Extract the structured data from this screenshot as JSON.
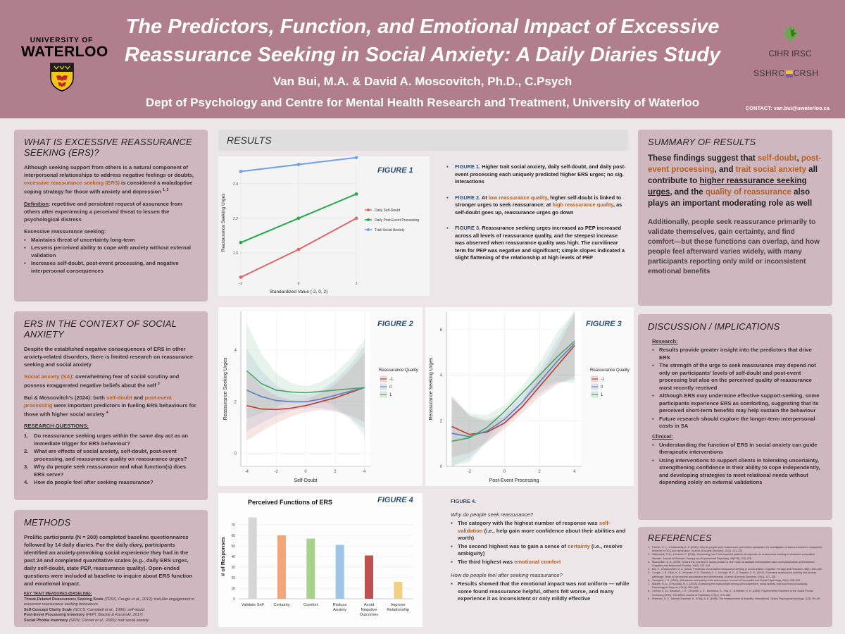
{
  "header": {
    "title_line1": "The Predictors, Function, and Emotional Impact of Excessive",
    "title_line2": "Reassurance Seeking in Social Anxiety: A Daily Diaries Study",
    "authors": "Van Bui, M.A. & David A. Moscovitch, Ph.D., C.Psych",
    "department": "Dept of Psychology and Centre for Mental Health Research and Treatment, University of Waterloo",
    "contact": "CONTACT:  van.bui@uwaterloo.ca",
    "uw_line1": "UNIVERSITY OF",
    "uw_line2": "WATERLOO",
    "cihr": "CIHR IRSC",
    "sshrc_left": "SSHRC",
    "sshrc_right": "CRSH"
  },
  "ers": {
    "title": "WHAT IS EXCESSIVE REASSURANCE SEEKING (ERS)?",
    "intro_a": "Although seeking support from others is a natural component of interpersonal relationships to address negative feelings or doubts, ",
    "intro_accent": "excessive reassurance seeking (ERS)",
    "intro_b": " is considered a maladaptive coping strategy for those with anxiety and depression ",
    "intro_ref": "1, 2",
    "def_label": "Definition",
    "def_text": ": repetitive and persistent request of assurance from others after experiencing a perceived threat to lessen the psychological distress",
    "list_label": "Excessive reassurance seeking",
    "list": [
      "Maintains threat of uncertainty long-term",
      "Lessens perceived ability to cope with anxiety without external validation",
      "Increases self-doubt, post-event processing, and negative interpersonal consequences"
    ]
  },
  "context": {
    "title": "ERS IN THE CONTEXT OF SOCIAL ANXIETY",
    "p1": "Despite the established negative consequences of ERS in other anxiety-related disorders, there is limited research on reassurance seeking and social anxiety",
    "sa_label": "Social anxiety (SA)",
    "sa_text": ": overwhelming fear of social scrutiny and possess exaggerated negative beliefs about the self ",
    "sa_ref": "3",
    "bm_a": "Bui & Moscovitch's (2024): both ",
    "bm_sd": "self-doubt",
    "bm_and": " and ",
    "bm_pp": "post-event processing",
    "bm_b": " were important predictors in fueling ERS behaviours for those with higher social anxiety ",
    "bm_ref": "4",
    "rq_label": "RESEARCH QUESTIONS:",
    "questions": [
      "Do reassurance seeking urges within the same day act as an immediate trigger for ERS behaviour?",
      "What are effects of social anxiety, self-doubt, post-event processing, and reassurance quality on reassurance urges?",
      "Why do people seek reassurance and what function(s) does ERS serve?",
      "How do people feel after seeking reassurance?"
    ]
  },
  "methods": {
    "title": "METHODS",
    "text": "Prolific participants (N = 200) completed baseline questionnaires followed by 14 daily diaries. For the daily diary, participants identified an anxiety-provoking social experience they had in the past 24 and completed quantitative scales (e.g., daily ERS urges, daily self-doubt, state PEP, reassurance quality). Open-ended questions were included at baseline to inquire about ERS function and emotional impact.",
    "measures_label": "KEY TRAIT MEASURES (BASELINE):",
    "measures": [
      {
        "name": "Threat-Related Reassurance Seeking Scale",
        "desc": " (TRSS; Cougle et al., 2012): trait-like engagement in excessive reassurance seeking behaviours"
      },
      {
        "name": "Self-Concept Clarity Scale",
        "desc": " (SCCS; Campbell et al., 1996): self-doubt"
      },
      {
        "name": "Post-Event Processing Inventory",
        "desc": " (PEPI; Blackie & Kocovski, 2017)"
      },
      {
        "name": "Social Phobia Inventory",
        "desc": " (SPIN; Connor et al., 2000): trait social anxiety"
      }
    ]
  },
  "results": {
    "title": "RESULTS",
    "figure1_label": "FIGURE 1",
    "figure2_label": "FIGURE 2",
    "figure3_label": "FIGURE 3",
    "figure4_label": "FIGURE 4",
    "notes": {
      "f1_label": "FIGURE 1.",
      "f1_text": " Higher trait social anxiety, daily self-doubt, and daily post-event processing each uniquely predicted higher ERS urges; no sig. interactions",
      "f2_label": "FIGURE 2.",
      "f2_a": " At ",
      "f2_low": "low reassurance quality",
      "f2_b": ", higher self-doubt is linked to stronger urges to seek reassurance; at ",
      "f2_high": "high reassurance quality",
      "f2_c": ", as self-doubt goes up, reassurance urges go down",
      "f3_label": "FIGURE 3.",
      "f3_text": " Reassurance seeking urges increased as PEP increased across all levels of reassurance quality, and the steepest increase was observed when reassurance quality was high. The curvilinear term for PEP was negative and significant; simple slopes indicated a slight flattening of the relationship at high levels of PEP"
    },
    "fig4_notes": {
      "label": "FIGURE 4.",
      "q1": "Why do people seek reassurance?",
      "b1_a": "The category with the highest number of response was ",
      "b1_acc": "self-validation",
      "b1_b": " (i.e., help gain more confidence about their abilities and worth)",
      "b2_a": "The second highest was to gain a sense of ",
      "b2_acc": "certainty",
      "b2_b": " (i.e., resolve ambiguity)",
      "b3_a": "The third highest was ",
      "b3_acc": "emotional comfort",
      "q2": "How do people feel after seeking reassurance?",
      "b4": "Results showed that the emotional impact was not uniform — while some found reassurance helpful, others felt worse, and many experience it as inconsistent or only mildly effective"
    }
  },
  "summary": {
    "title": "SUMMARY OF RESULTS",
    "s1": "These findings suggest that ",
    "s_sd": "self-doubt",
    "s_comma": ", ",
    "s_pep": "post-event processing",
    "s_and": ", and ",
    "s_tsa": "trait social anxiety",
    "s2": " all contribute to ",
    "s_higher": "higher reassurance seeking urges",
    "s3": ", and the ",
    "s_qual": "quality of reassurance",
    "s4": " also plays an important moderating role as well",
    "p2": "Additionally, people seek reassurance primarily to validate themselves, gain certainty, and find comfort—but these functions can overlap, and how people feel afterward varies widely, with many participants reporting only mild or inconsistent emotional benefits"
  },
  "discussion": {
    "title": "DISCUSSION / IMPLICATIONS",
    "research_label": "Research:",
    "research": [
      "Results provide greater insight into the predictors that drive ERS",
      "The strength of the urge to seek reassurance may depend not only on participants' levels of self-doubt and post-event processing but also on the perceived quality of reassurance most recently received",
      "Although ERS may undermine effective support-seeking, some participants experience ERS as comforting, suggesting that its perceived short-term benefits may help sustain the behaviour",
      "Future research should explore the longer-term interpersonal costs in SA"
    ],
    "clinical_label": "Clinical:",
    "clinical": [
      "Understanding the function of ERS in social anxiety can guide therapeutic interventions",
      "Using interventions to support clients in tolerating uncertainty, strengthening confidence in their ability to cope independently, and developing strategies to meet relational needs without depending solely on external validations"
    ]
  },
  "references": {
    "title": "REFERENCES",
    "items": [
      "Parrish, C. L., & Radomsky, A. S. (2010). Why do people seek reassurance and check repeatedly? An investigation of factors involved in compulsive behavior in OCD and depression. Journal of Anxiety Disorders, 24(2), 211–222.",
      "Salkovskis, P. M., & Kobori, O. (2015). Reassuring care? Self-reported patterns of responses to reassurance seeking in obsessive compulsive disorder. Journal of Behavior Therapy and Experimental Psychiatry, 49(Pt B), 203–208.",
      "Moscovitch, D. A. (2009). What is the core fear in social phobia? A new model to facilitate individualized case conceptualization and treatment. Cognitive and Behavioral Practice, 16(2), 123–134.",
      "Bui, V., & Moscovitch, D. A. (2024). Predictors of excessive reassurance seeking in social anxiety. Cognitive Therapy and Research, 48(2), 282–302.",
      "Cougle, J. R., Fitch, K. E., Fincham, F. D., Riccardi, C. J., Keough, M. E., & Timpano, K. R. (2012). Excessive reassurance seeking and anxiety pathology: Tests of incremental associations and directionality. Journal of Anxiety Disorders, 26(1), 117–125.",
      "Campbell, J. D. (1990). Self-esteem and clarity of the self-concept. Journal of Personality and Social Psychology, 59(3), 538–549.",
      "Blackie, R. A., & Kocovski, N. L. (2018). Examining the relationships among self-compassion, social anxiety, and post-event processing. Psychological Reports, 121(4), 669–689.",
      "Connor, K. M., Davidson, J. R., Churchill, L. E., Sherwood, A., Foa, E., & Weisler, R. H. (2000). Psychometric properties of the Social Phobia Inventory (SPIN). The British Journal of Psychiatry, 176(4), 379–386.",
      "Sheehan, D. V., Harnett-Sheehan, K., & Raj, B. A. (1996). The measurement of disability. International Clinical Psychopharmacology, 11(3), 89–95."
    ]
  },
  "colors": {
    "header": "#b07e8d",
    "panel": "#cfb7bf",
    "accent": "#b45f22",
    "figure_label": "#2b4f7a"
  },
  "chart_data": [
    {
      "id": "figure1",
      "type": "line",
      "xlabel": "Standardized Value (-2, 0, 2)",
      "ylabel": "Reassurance Seeking Urges",
      "x": [
        -2,
        0,
        2
      ],
      "x_ticks": [
        "-2",
        "0",
        "2"
      ],
      "y_ticks": [
        "2.0",
        "2.2",
        "2.4"
      ],
      "ylim": [
        1.85,
        2.5
      ],
      "series": [
        {
          "name": "Daily Self-Doubt",
          "color": "#e06666",
          "values": [
            1.86,
            2.02,
            2.2
          ]
        },
        {
          "name": "Daily Post-Event Processing",
          "color": "#22aa44",
          "values": [
            2.06,
            2.2,
            2.34
          ]
        },
        {
          "name": "Trait Social Anxiety",
          "color": "#6d9eeb",
          "values": [
            2.47,
            2.51,
            2.55
          ]
        }
      ],
      "legend": "right"
    },
    {
      "id": "figure2",
      "type": "line",
      "xlabel": "Self-Doubt",
      "ylabel": "Reassurance Seeking Urges",
      "legend_title": "Reassurance Quality",
      "x": [
        -4,
        -3,
        -2,
        -1,
        0,
        1,
        2,
        3,
        4
      ],
      "x_ticks": [
        "-4",
        "-2",
        "0",
        "2",
        "4"
      ],
      "y_ticks": [
        "0",
        "2",
        "4"
      ],
      "ylim": [
        -0.5,
        5.5
      ],
      "series": [
        {
          "name": "-1",
          "color": "#c0392b",
          "values": [
            1.85,
            1.72,
            1.7,
            1.75,
            1.85,
            2.0,
            2.15,
            2.35,
            2.55
          ]
        },
        {
          "name": "0",
          "color": "#5b7fc7",
          "values": [
            2.45,
            2.2,
            2.05,
            2.0,
            2.0,
            2.1,
            2.25,
            2.4,
            2.55
          ]
        },
        {
          "name": "1",
          "color": "#4aa564",
          "values": [
            3.2,
            2.7,
            2.45,
            2.38,
            2.35,
            2.4,
            2.45,
            2.5,
            2.55
          ]
        }
      ],
      "legend": "right"
    },
    {
      "id": "figure3",
      "type": "line",
      "xlabel": "Post-Event Processing",
      "ylabel": "Reassurance Seeking Urges",
      "legend_title": "Reassurance Quality",
      "x": [
        -3,
        -2,
        -1,
        0,
        1,
        2,
        3,
        4
      ],
      "x_ticks": [
        "-2",
        "0",
        "2",
        "4"
      ],
      "y_ticks": [
        "0",
        "2",
        "4",
        "6"
      ],
      "ylim": [
        0,
        6.8
      ],
      "series": [
        {
          "name": "-1",
          "color": "#c0392b",
          "values": [
            1.75,
            1.4,
            1.5,
            1.9,
            2.6,
            3.5,
            4.4,
            5.3
          ]
        },
        {
          "name": "0",
          "color": "#5b7fc7",
          "values": [
            1.45,
            1.3,
            1.55,
            2.05,
            2.8,
            3.7,
            4.6,
            5.4
          ]
        },
        {
          "name": "1",
          "color": "#4aa564",
          "values": [
            1.1,
            1.25,
            1.7,
            2.4,
            3.2,
            4.0,
            4.8,
            5.5
          ]
        }
      ],
      "legend": "right"
    },
    {
      "id": "figure4",
      "type": "bar",
      "title": "Perceived Functions of ERS",
      "ylabel": "# of Responses",
      "categories": [
        "Validate Self",
        "Certainty",
        "Comfort",
        "Reduce Anxiety",
        "Avoid Negative Outcomes",
        "Improve Relationship"
      ],
      "values": [
        77,
        60,
        57,
        51,
        41,
        16
      ],
      "colors": [
        "#d6d6d6",
        "#f2a679",
        "#a9d18e",
        "#9dc3e6",
        "#c0504d",
        "#f2d083"
      ],
      "y_ticks": [
        "0",
        "10",
        "20",
        "30",
        "40",
        "50",
        "60",
        "70"
      ],
      "ylim": [
        0,
        80
      ]
    }
  ]
}
